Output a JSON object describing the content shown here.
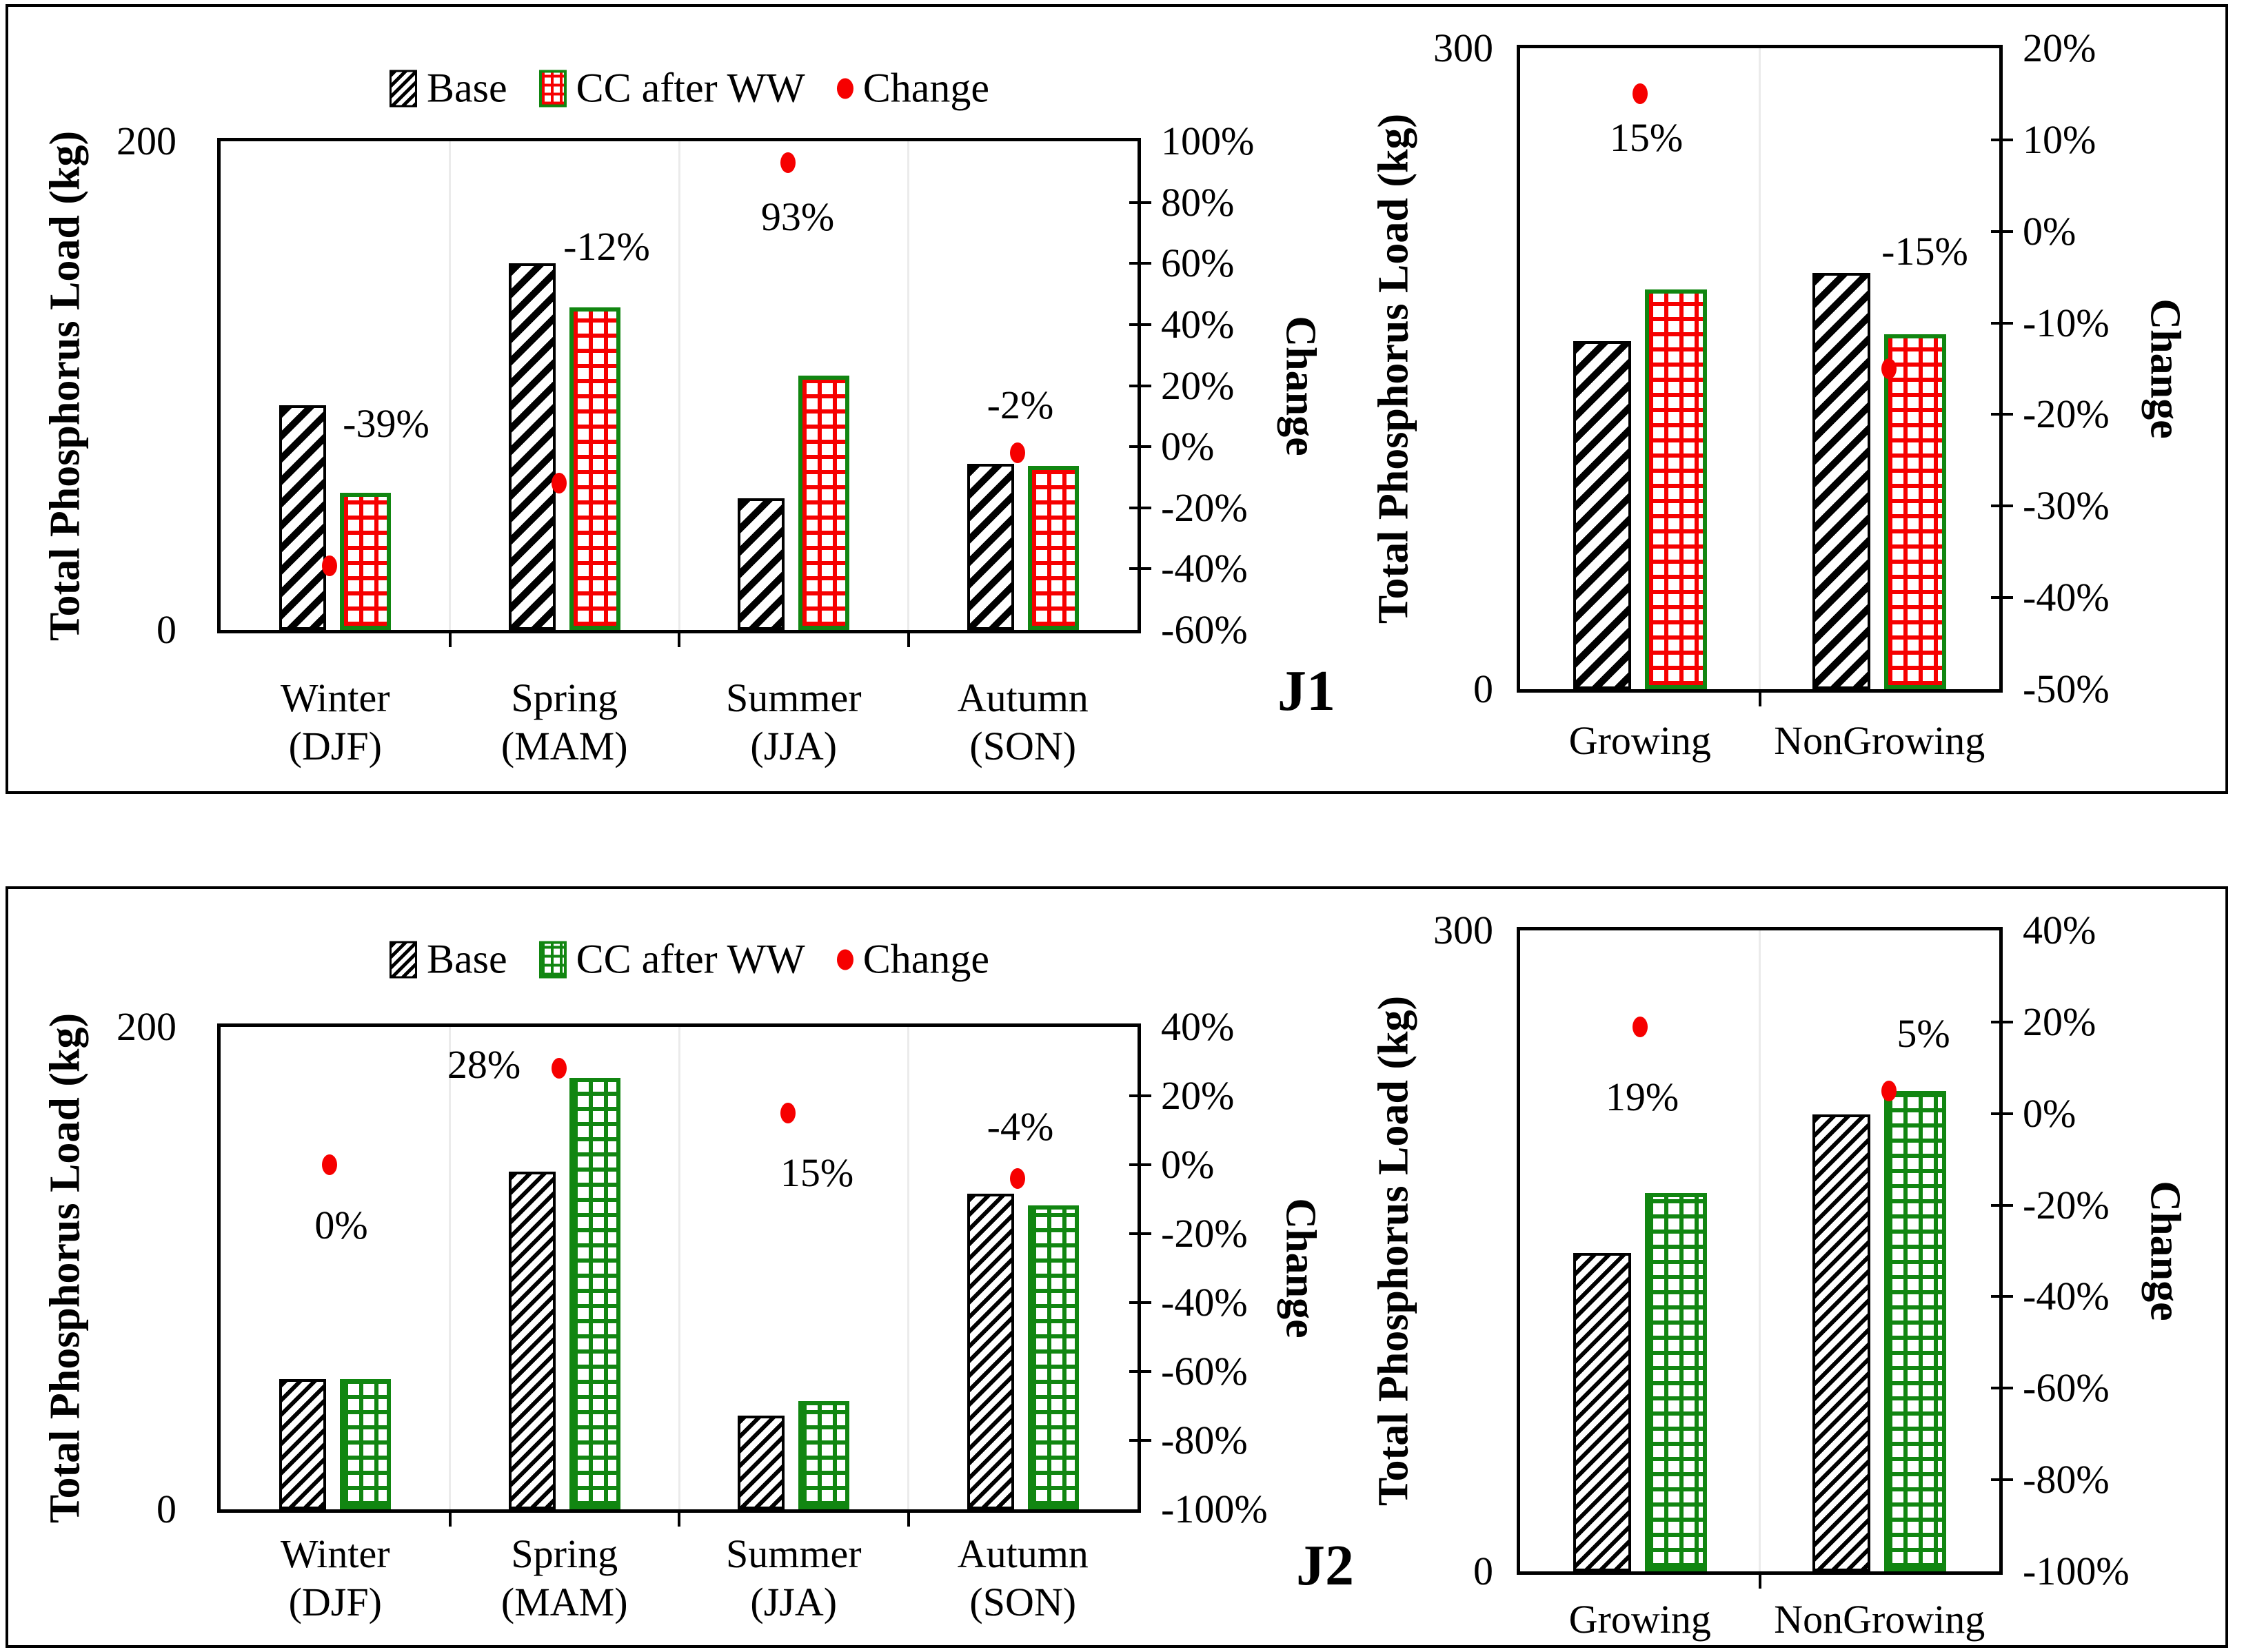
{
  "panels": [
    {
      "label": "J1"
    },
    {
      "label": "J2"
    }
  ],
  "colors": {
    "base_bar": "#000000",
    "cc_fill_j1": "#f60000",
    "cc_fill_j2": "#118611",
    "cc_border": "#118611",
    "change_dot": "#f60000",
    "gridline": "#ebebeb",
    "text": "#000000"
  },
  "chart_data": [
    {
      "id": "j1-seasonal",
      "panel": "J1",
      "type": "bar",
      "legend_visible": true,
      "legend": [
        "Base",
        "CC after WW",
        "Change"
      ],
      "categories": [
        {
          "name": "Winter",
          "sub": "(DJF)"
        },
        {
          "name": "Spring",
          "sub": "(MAM)"
        },
        {
          "name": "Summer",
          "sub": "(JJA)"
        },
        {
          "name": "Autumn",
          "sub": "(SON)"
        }
      ],
      "series": [
        {
          "name": "Base",
          "values": [
            92,
            150,
            54,
            68
          ]
        },
        {
          "name": "CC after WW",
          "values": [
            56,
            132,
            104,
            67
          ]
        }
      ],
      "change_series": {
        "name": "Change",
        "values_pct": [
          -39,
          -12,
          93,
          -2
        ],
        "labels": [
          "-39%",
          "-12%",
          "93%",
          "-2%"
        ]
      },
      "y1": {
        "label": "Total Phosphorus Load (kg)",
        "min": 0,
        "max": 200,
        "ticks": [
          "200",
          "0"
        ]
      },
      "y2": {
        "label": "Change",
        "min": -60,
        "max": 100,
        "step": 20,
        "tick_suffix": "%"
      }
    },
    {
      "id": "j1-growing",
      "panel": "J1",
      "type": "bar",
      "legend_visible": false,
      "legend": [
        "Base",
        "CC after WW",
        "Change"
      ],
      "categories": [
        {
          "name": "Growing",
          "sub": ""
        },
        {
          "name": "NonGrowing",
          "sub": ""
        }
      ],
      "series": [
        {
          "name": "Base",
          "values": [
            163,
            195
          ]
        },
        {
          "name": "CC after WW",
          "values": [
            187,
            166
          ]
        }
      ],
      "change_series": {
        "name": "Change",
        "values_pct": [
          15,
          -15
        ],
        "labels": [
          "15%",
          "-15%"
        ]
      },
      "y1": {
        "label": "Total Phosphorus Load (kg)",
        "min": 0,
        "max": 300,
        "ticks": [
          "300",
          "0"
        ]
      },
      "y2": {
        "label": "Change",
        "min": -50,
        "max": 20,
        "step": 10,
        "tick_suffix": "%"
      }
    },
    {
      "id": "j2-seasonal",
      "panel": "J2",
      "type": "bar",
      "legend_visible": true,
      "legend": [
        "Base",
        "CC after WW",
        "Change"
      ],
      "categories": [
        {
          "name": "Winter",
          "sub": "(DJF)"
        },
        {
          "name": "Spring",
          "sub": "(MAM)"
        },
        {
          "name": "Summer",
          "sub": "(JJA)"
        },
        {
          "name": "Autumn",
          "sub": "(SON)"
        }
      ],
      "series": [
        {
          "name": "Base",
          "values": [
            54,
            140,
            39,
            131
          ]
        },
        {
          "name": "CC after WW",
          "values": [
            54,
            179,
            45,
            126
          ]
        }
      ],
      "change_series": {
        "name": "Change",
        "values_pct": [
          0,
          28,
          15,
          -4
        ],
        "labels": [
          "0%",
          "28%",
          "15%",
          "-4%"
        ]
      },
      "y1": {
        "label": "Total Phosphorus Load (kg)",
        "min": 0,
        "max": 200,
        "ticks": [
          "200",
          "0"
        ]
      },
      "y2": {
        "label": "Change",
        "min": -100,
        "max": 40,
        "step": 20,
        "tick_suffix": "%"
      }
    },
    {
      "id": "j2-growing",
      "panel": "J2",
      "type": "bar",
      "legend_visible": false,
      "legend": [
        "Base",
        "CC after WW",
        "Change"
      ],
      "categories": [
        {
          "name": "Growing",
          "sub": ""
        },
        {
          "name": "NonGrowing",
          "sub": ""
        }
      ],
      "series": [
        {
          "name": "Base",
          "values": [
            149,
            214
          ]
        },
        {
          "name": "CC after WW",
          "values": [
            177,
            225
          ]
        }
      ],
      "change_series": {
        "name": "Change",
        "values_pct": [
          19,
          5
        ],
        "labels": [
          "19%",
          "5%"
        ]
      },
      "y1": {
        "label": "Total Phosphorus Load (kg)",
        "min": 0,
        "max": 300,
        "ticks": [
          "300",
          "0"
        ]
      },
      "y2": {
        "label": "Change",
        "min": -100,
        "max": 40,
        "step": 20,
        "tick_suffix": "%"
      }
    }
  ]
}
